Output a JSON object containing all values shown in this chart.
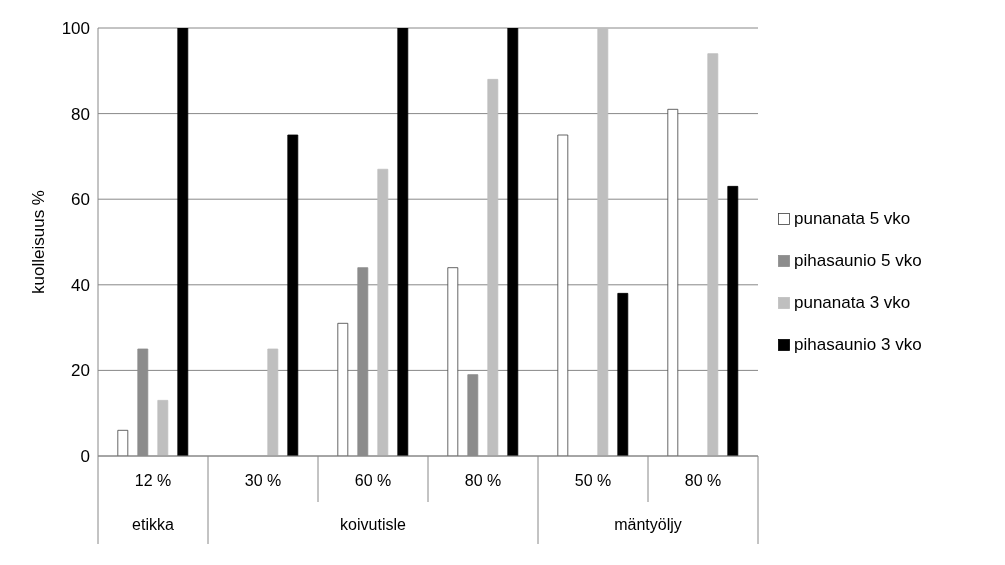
{
  "chart_data": {
    "type": "bar",
    "ylabel": "kuolleisuus %",
    "categories": [
      "12 %",
      "30 %",
      "60 %",
      "80 %",
      "50 %",
      "80 %"
    ],
    "annotations": [
      "etikka",
      "koivutisle",
      "mäntyöljy"
    ],
    "series": [
      {
        "name": "punanata 5 vko",
        "color": "#ffffff",
        "values": [
          6,
          null,
          31,
          44,
          75,
          81
        ]
      },
      {
        "name": "pihasaunio 5 vko",
        "color": "#8c8c8c",
        "values": [
          25,
          null,
          44,
          19,
          null,
          null
        ]
      },
      {
        "name": "punanata 3 vko",
        "color": "#bfbfbf",
        "values": [
          13,
          25,
          67,
          88,
          100,
          94
        ]
      },
      {
        "name": "pihasaunio 3 vko",
        "color": "#000000",
        "values": [
          100,
          75,
          100,
          100,
          38,
          63
        ]
      }
    ],
    "ylim": [
      0,
      100
    ],
    "yticks": [
      0,
      20,
      40,
      60,
      80,
      100
    ],
    "grid": "y",
    "legend": "right"
  }
}
